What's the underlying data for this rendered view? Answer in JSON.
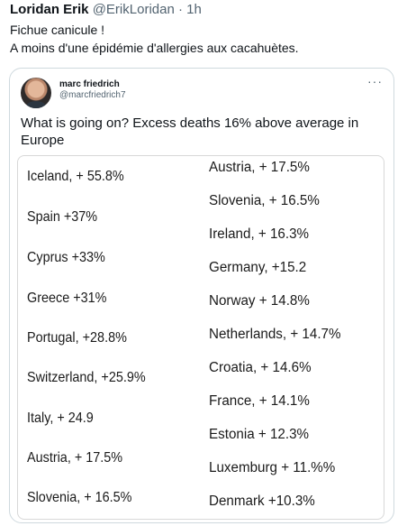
{
  "tweet": {
    "author_name": "Loridan Erik",
    "author_handle": "@ErikLoridan",
    "separator": "·",
    "time": "1h",
    "text_lines": [
      "Fichue canicule !",
      "A moins d'une épidémie d'allergies aux cacahuètes."
    ]
  },
  "quoted": {
    "author_name": "marc friedrich",
    "author_handle": "@marcfriedrich7",
    "more_icon": "more-dots-icon",
    "more_label": "···",
    "text": "What is going on? Excess deaths 16% above average in Europe",
    "image": {
      "left_column": [
        "Iceland, + 55.8%",
        "Spain +37%",
        "Cyprus +33%",
        "Greece +31%",
        "Portugal, +28.8%",
        "Switzerland, +25.9%",
        "Italy, + 24.9",
        "Austria, + 17.5%",
        "Slovenia, + 16.5%"
      ],
      "right_column": [
        "Austria, + 17.5%",
        "Slovenia, + 16.5%",
        "Ireland, + 16.3%",
        "Germany, +15.2",
        "Norway + 14.8%",
        "Netherlands, + 14.7%",
        "Croatia, + 14.6%",
        "France, + 14.1%",
        "Estonia + 12.3%",
        "Luxemburg + 11.%%",
        "Denmark +10.3%"
      ]
    }
  }
}
